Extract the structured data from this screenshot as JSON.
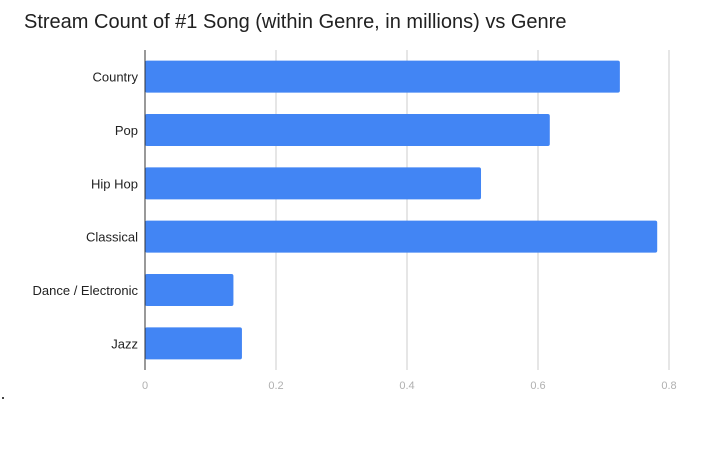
{
  "chart_data": {
    "type": "bar",
    "orientation": "horizontal",
    "title": "Stream Count of #1 Song (within Genre, in millions) vs Genre",
    "categories": [
      "Country",
      "Pop",
      "Hip Hop",
      "Classical",
      "Dance / Electronic",
      "Jazz"
    ],
    "values": [
      0.725,
      0.618,
      0.513,
      0.782,
      0.135,
      0.148
    ],
    "xlim": [
      0,
      0.8
    ],
    "x_ticks": [
      0,
      0.2,
      0.4,
      0.6,
      0.8
    ],
    "x_tick_labels": [
      "0",
      "0.2",
      "0.4",
      "0.6",
      "0.8"
    ],
    "grid": true,
    "bar_color": "#4285f4",
    "grid_color": "#cccccc",
    "axis_color": "#333333"
  }
}
